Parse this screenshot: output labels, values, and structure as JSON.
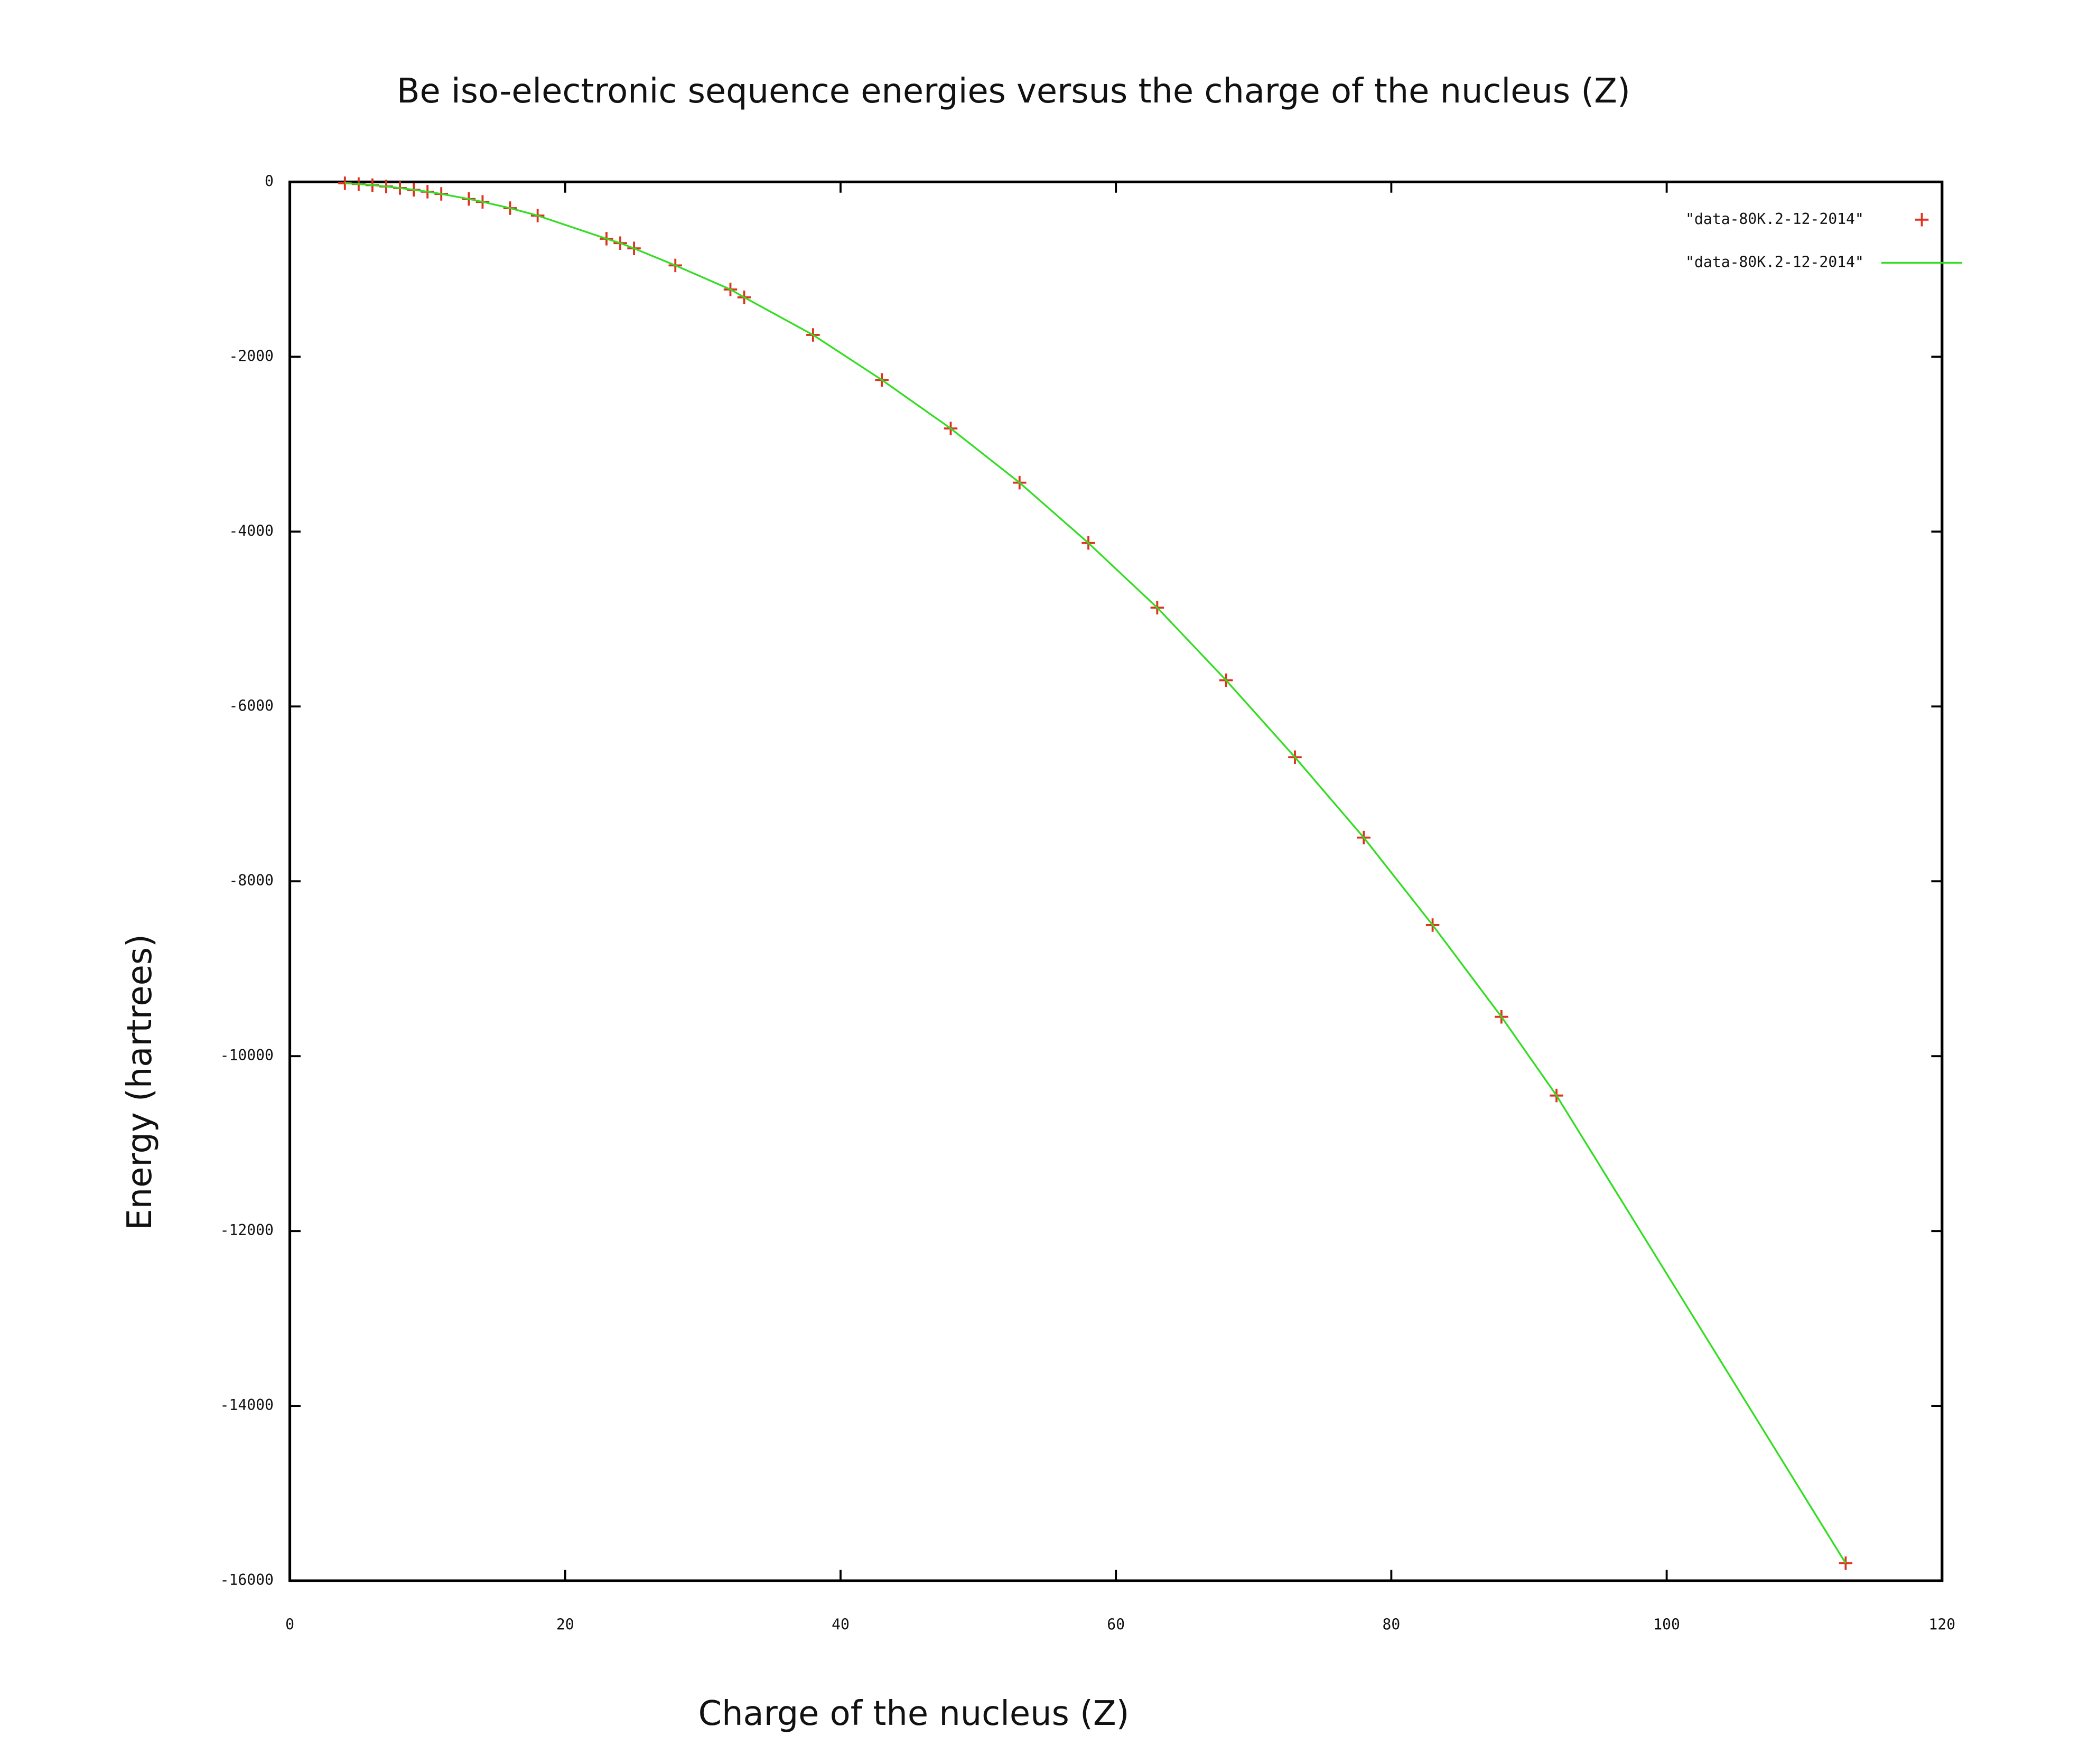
{
  "chart_data": {
    "type": "scatter-line",
    "title": "Be iso-electronic sequence energies versus  the charge of the nucleus (Z)",
    "xlabel": "Charge of the nucleus (Z)",
    "ylabel": "Energy (hartrees)",
    "x": [
      4,
      5,
      6,
      7,
      8,
      9,
      10,
      11,
      13,
      14,
      16,
      18,
      23,
      24,
      25,
      28,
      32,
      33,
      38,
      43,
      48,
      53,
      58,
      63,
      68,
      73,
      78,
      83,
      88,
      92,
      113
    ],
    "series": [
      {
        "name": "\"data-80K.2-12-2014\"",
        "color": "#e0301e",
        "style": "points",
        "values": [
          -15,
          -24,
          -37,
          -52,
          -70,
          -90,
          -112,
          -137,
          -195,
          -228,
          -300,
          -385,
          -650,
          -700,
          -760,
          -955,
          -1230,
          -1320,
          -1750,
          -2265,
          -2820,
          -3440,
          -4130,
          -4870,
          -5700,
          -6580,
          -7500,
          -8500,
          -9550,
          -10450,
          -15800
        ]
      },
      {
        "name": "\"data-80K.2-12-2014\"",
        "color": "#33dd22",
        "style": "line",
        "values": [
          -15,
          -24,
          -37,
          -52,
          -70,
          -90,
          -112,
          -137,
          -195,
          -228,
          -300,
          -385,
          -650,
          -700,
          -760,
          -955,
          -1230,
          -1320,
          -1750,
          -2265,
          -2820,
          -3440,
          -4130,
          -4870,
          -5700,
          -6580,
          -7500,
          -8500,
          -9550,
          -10450,
          -15800
        ]
      }
    ],
    "xlim": [
      0,
      120
    ],
    "xticks": [
      0,
      20,
      40,
      60,
      80,
      100,
      120
    ],
    "ylim": [
      -16000,
      0
    ],
    "yticks": [
      -16000,
      -14000,
      -12000,
      -10000,
      -8000,
      -6000,
      -4000,
      -2000,
      0
    ],
    "legend": "top-right",
    "grid": false
  }
}
